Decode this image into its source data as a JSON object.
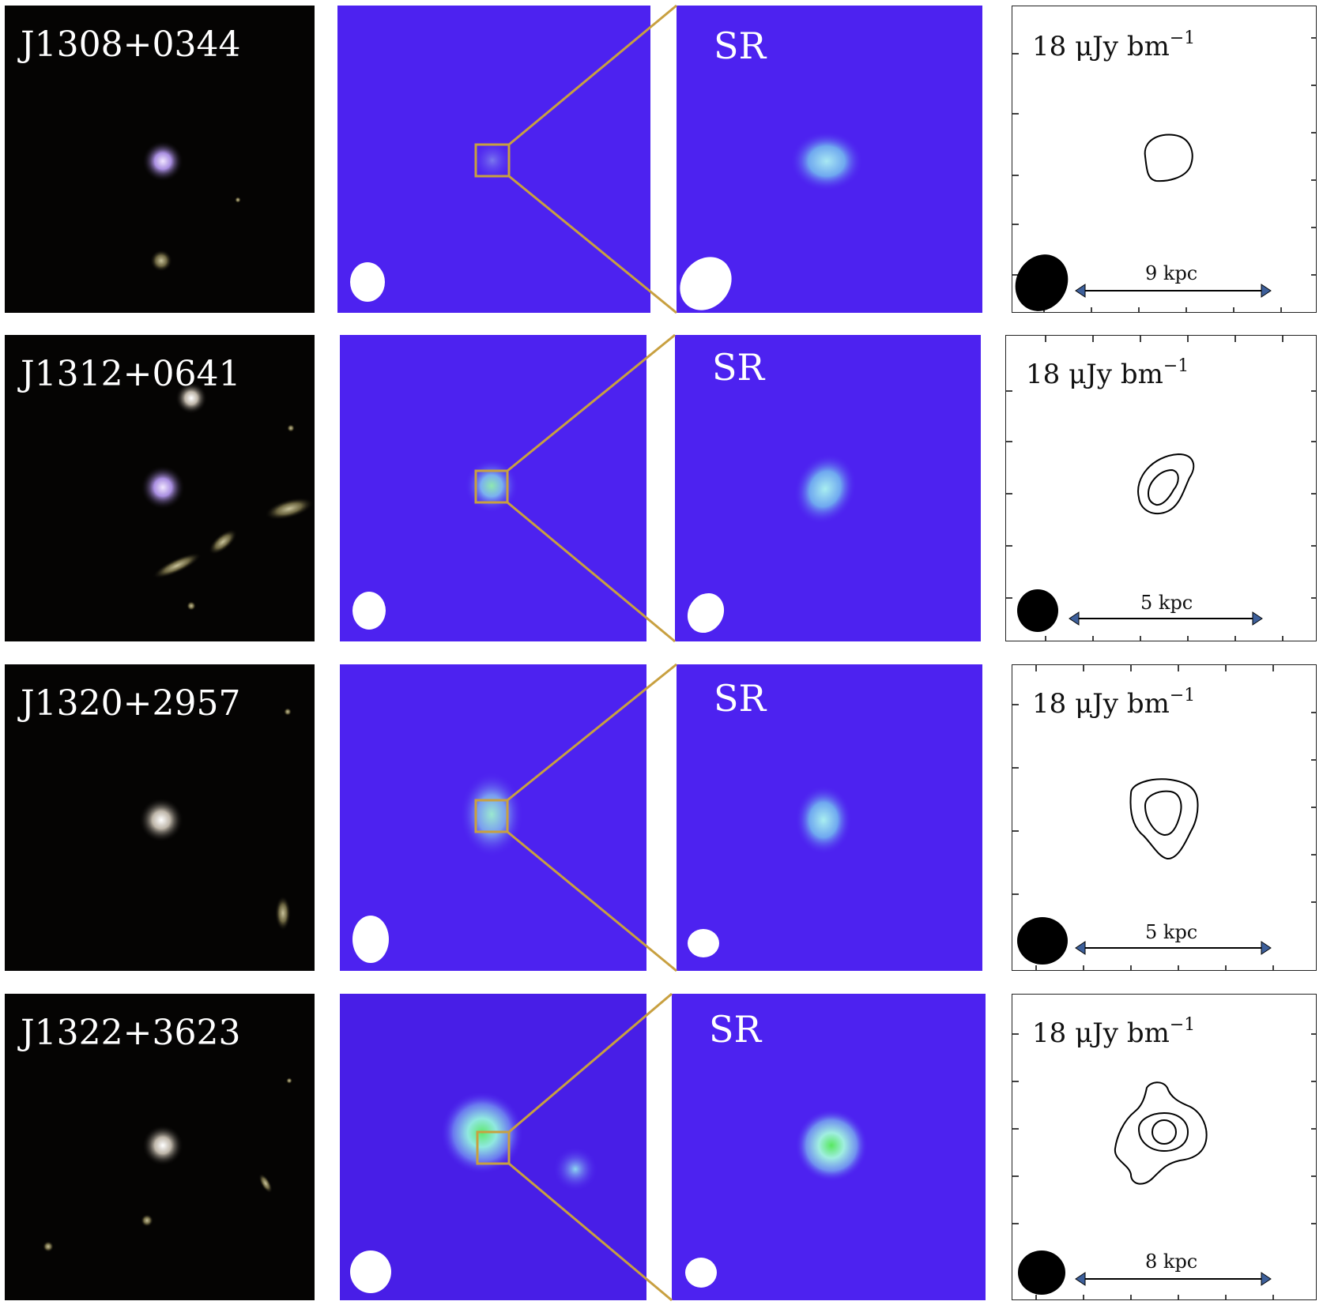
{
  "rows": [
    {
      "name": "J1308+0344",
      "zoom_label": "SR",
      "flux_value": "18",
      "flux_unit": "μJy bm",
      "flux_exp": "−1",
      "scale_label": "9 kpc"
    },
    {
      "name": "J1312+0641",
      "zoom_label": "SR",
      "flux_value": "18",
      "flux_unit": "μJy bm",
      "flux_exp": "−1",
      "scale_label": "5 kpc"
    },
    {
      "name": "J1320+2957",
      "zoom_label": "SR",
      "flux_value": "18",
      "flux_unit": "μJy bm",
      "flux_exp": "−1",
      "scale_label": "5 kpc"
    },
    {
      "name": "J1322+3623",
      "zoom_label": "SR",
      "flux_value": "18",
      "flux_unit": "μJy bm",
      "flux_exp": "−1",
      "scale_label": "8 kpc"
    }
  ],
  "colors": {
    "radio_background": "#4d22f0",
    "zoom_box": "#c8a040",
    "optical_background": "#050403",
    "contour_line": "#000000",
    "scale_arrow_head": "#3d5f9a"
  }
}
